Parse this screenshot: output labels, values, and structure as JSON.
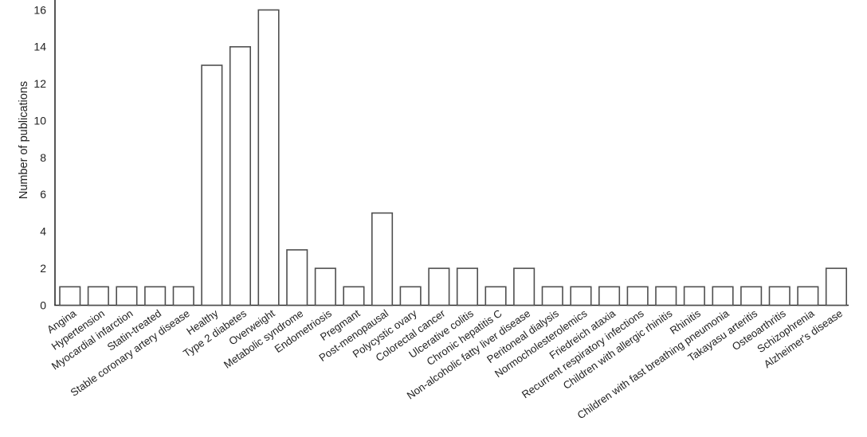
{
  "chart_data": {
    "type": "bar",
    "title": "",
    "xlabel": "",
    "ylabel": "Number of publications",
    "categories": [
      "Angina",
      "Hypertension",
      "Myocardial infarction",
      "Statin-treated",
      "Stable coronary artery disease",
      "Healthy",
      "Type 2 diabetes",
      "Overweight",
      "Metabolic syndrome",
      "Endometriosis",
      "Pregmant",
      "Post-menopausal",
      "Polycystic ovary",
      "Colorectal cancer",
      "Ulcerative colitis",
      "Chronic hepatitis C",
      "Non-alcoholic fatty liver disease",
      "Peritoneal dialysis",
      "Normocholesterolemics",
      "Friedreich ataxia",
      "Recurrent respiratory infections",
      "Children with allergic rhinitis",
      "Rhinitis",
      "Children with fast breathing pneumonia",
      "Takayasu arteritis",
      "Osteoarthritis",
      "Schizophrenia",
      "Alzheimer's disease"
    ],
    "values": [
      1,
      1,
      1,
      1,
      1,
      13,
      14,
      16,
      3,
      2,
      1,
      5,
      1,
      2,
      2,
      1,
      2,
      1,
      1,
      1,
      1,
      1,
      1,
      1,
      1,
      1,
      1,
      2
    ],
    "ylim": [
      0,
      16
    ],
    "yticks": [
      0,
      2,
      4,
      6,
      8,
      10,
      12,
      14,
      16
    ],
    "grid": false,
    "legend": null,
    "xlabel_rotation_deg": 35,
    "colors": {
      "bar_fill": "#ffffff",
      "bar_stroke": "#4f4f4f",
      "axis_color": "#2b2b2b",
      "text_color": "#1f1f1f"
    }
  }
}
